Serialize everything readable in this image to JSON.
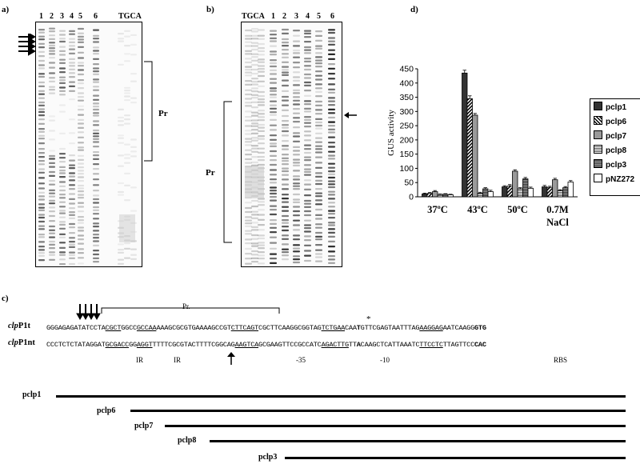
{
  "panels": {
    "a": "a)",
    "b": "b)",
    "c": "c)",
    "d": "d)"
  },
  "panel_a": {
    "lane_labels": [
      "1",
      "2",
      "3",
      "4",
      "5",
      "6"
    ],
    "seq_label": "TGCA",
    "bracket_label": "Pr"
  },
  "panel_b": {
    "seq_label": "TGCA",
    "lane_labels": [
      "1",
      "2",
      "3",
      "4",
      "5",
      "6"
    ],
    "bracket_label": "Pr"
  },
  "panel_c": {
    "pr_label": "Pr.",
    "seq1_name_italic": "clp",
    "seq1_name_rest": "P1t",
    "seq1_segments": [
      {
        "t": "GGGAGAGATATCCTA",
        "s": ""
      },
      {
        "t": "CGCT",
        "s": "u"
      },
      {
        "t": "GGCC",
        "s": ""
      },
      {
        "t": "GCCAA",
        "s": "u"
      },
      {
        "t": "AAAGCGCGTGAAAAGCCGT",
        "s": ""
      },
      {
        "t": "CTTCAGT",
        "s": "u"
      },
      {
        "t": "CGCTTCAAGGCGGTAG",
        "s": ""
      },
      {
        "t": "TCTGAA",
        "s": "u"
      },
      {
        "t": "CAA",
        "s": ""
      },
      {
        "t": "T",
        "s": "b"
      },
      {
        "t": "GTTCGAGTAATTTAG",
        "s": ""
      },
      {
        "t": "AAGGAG",
        "s": "u"
      },
      {
        "t": "AATCAAGG",
        "s": ""
      },
      {
        "t": "GTG",
        "s": "b"
      }
    ],
    "seq2_name_italic": "clp",
    "seq2_name_rest": "P1nt",
    "seq2_segments": [
      {
        "t": "CCCTCTCTATAGGAT",
        "s": ""
      },
      {
        "t": "GCGACC",
        "s": "u"
      },
      {
        "t": "GG",
        "s": ""
      },
      {
        "t": "AGGT",
        "s": "u"
      },
      {
        "t": "TTTTCGCGTACTTTTCGGCAG",
        "s": ""
      },
      {
        "t": "AAGTCA",
        "s": "u"
      },
      {
        "t": "GCGAAGTTCCGCCATC",
        "s": ""
      },
      {
        "t": "AGACTTG",
        "s": "u"
      },
      {
        "t": "TT",
        "s": ""
      },
      {
        "t": "A",
        "s": "b"
      },
      {
        "t": "CAAGCTCATTAAATC",
        "s": ""
      },
      {
        "t": "TTCCTC",
        "s": "u"
      },
      {
        "t": "TTAGTTCC",
        "s": ""
      },
      {
        "t": "CAC",
        "s": "b"
      }
    ],
    "star": "*",
    "annotations": {
      "ir1": "IR",
      "ir2": "IR",
      "m35": "-35",
      "m10": "-10",
      "rbs": "RBS"
    },
    "constructs": [
      "pclp1",
      "pclp6",
      "pclp7",
      "pclp8",
      "pclp3"
    ]
  },
  "colors": {
    "pclp1": "#333333",
    "pclp6": "#e8e8e8",
    "pclp7": "#9a9a9a",
    "pclp8": "#c8c8c8",
    "pclp3": "#666666",
    "pNZ272": "#ffffff"
  },
  "chart_data": {
    "type": "bar",
    "ylabel": "GUS activity",
    "ylim": [
      0,
      450
    ],
    "yticks": [
      0,
      50,
      100,
      150,
      200,
      250,
      300,
      350,
      400,
      450
    ],
    "categories": [
      "37ºC",
      "43ºC",
      "50ºC",
      "0.7M NaCl"
    ],
    "grid": false,
    "legend_position": "right",
    "series": [
      {
        "name": "pclp1",
        "values": [
          10,
          435,
          35,
          35
        ],
        "errors": [
          3,
          10,
          4,
          5
        ]
      },
      {
        "name": "pclp6",
        "values": [
          12,
          345,
          38,
          33
        ],
        "errors": [
          3,
          10,
          5,
          4
        ]
      },
      {
        "name": "pclp7",
        "values": [
          18,
          287,
          90,
          60
        ],
        "errors": [
          4,
          6,
          5,
          5
        ]
      },
      {
        "name": "pclp8",
        "values": [
          8,
          13,
          28,
          22
        ],
        "errors": [
          2,
          3,
          4,
          3
        ]
      },
      {
        "name": "pclp3",
        "values": [
          9,
          28,
          63,
          32
        ],
        "errors": [
          2,
          4,
          5,
          4
        ]
      },
      {
        "name": "pNZ272",
        "values": [
          7,
          18,
          30,
          52
        ],
        "errors": [
          2,
          5,
          4,
          5
        ]
      }
    ]
  }
}
